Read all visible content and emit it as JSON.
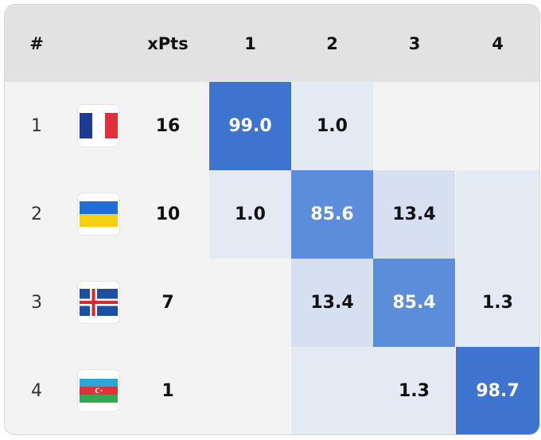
{
  "header": {
    "rank": "#",
    "flag": "",
    "xpts": "xPts",
    "positions": [
      "1",
      "2",
      "3",
      "4"
    ]
  },
  "colors": {
    "dark": "#3e73cf",
    "medium": "#5b8ddb",
    "light": "#d6e0f1",
    "faint": "#e4eaf4",
    "empty": "#f3f3f3"
  },
  "rows": [
    {
      "rank": "1",
      "flag": "france-flag",
      "xpts": "16",
      "cells": [
        {
          "value": "99.0",
          "level": "dark"
        },
        {
          "value": "1.0",
          "level": "faint"
        },
        {
          "value": "",
          "level": "empty"
        },
        {
          "value": "",
          "level": "empty"
        }
      ]
    },
    {
      "rank": "2",
      "flag": "ukraine-flag",
      "xpts": "10",
      "cells": [
        {
          "value": "1.0",
          "level": "faint"
        },
        {
          "value": "85.6",
          "level": "medium"
        },
        {
          "value": "13.4",
          "level": "light"
        },
        {
          "value": "",
          "level": "faint"
        }
      ]
    },
    {
      "rank": "3",
      "flag": "iceland-flag",
      "xpts": "7",
      "cells": [
        {
          "value": "",
          "level": "empty"
        },
        {
          "value": "13.4",
          "level": "light"
        },
        {
          "value": "85.4",
          "level": "medium"
        },
        {
          "value": "1.3",
          "level": "faint"
        }
      ]
    },
    {
      "rank": "4",
      "flag": "azerbaijan-flag",
      "xpts": "1",
      "cells": [
        {
          "value": "",
          "level": "empty"
        },
        {
          "value": "",
          "level": "faint"
        },
        {
          "value": "1.3",
          "level": "faint"
        },
        {
          "value": "98.7",
          "level": "dark"
        }
      ]
    }
  ]
}
